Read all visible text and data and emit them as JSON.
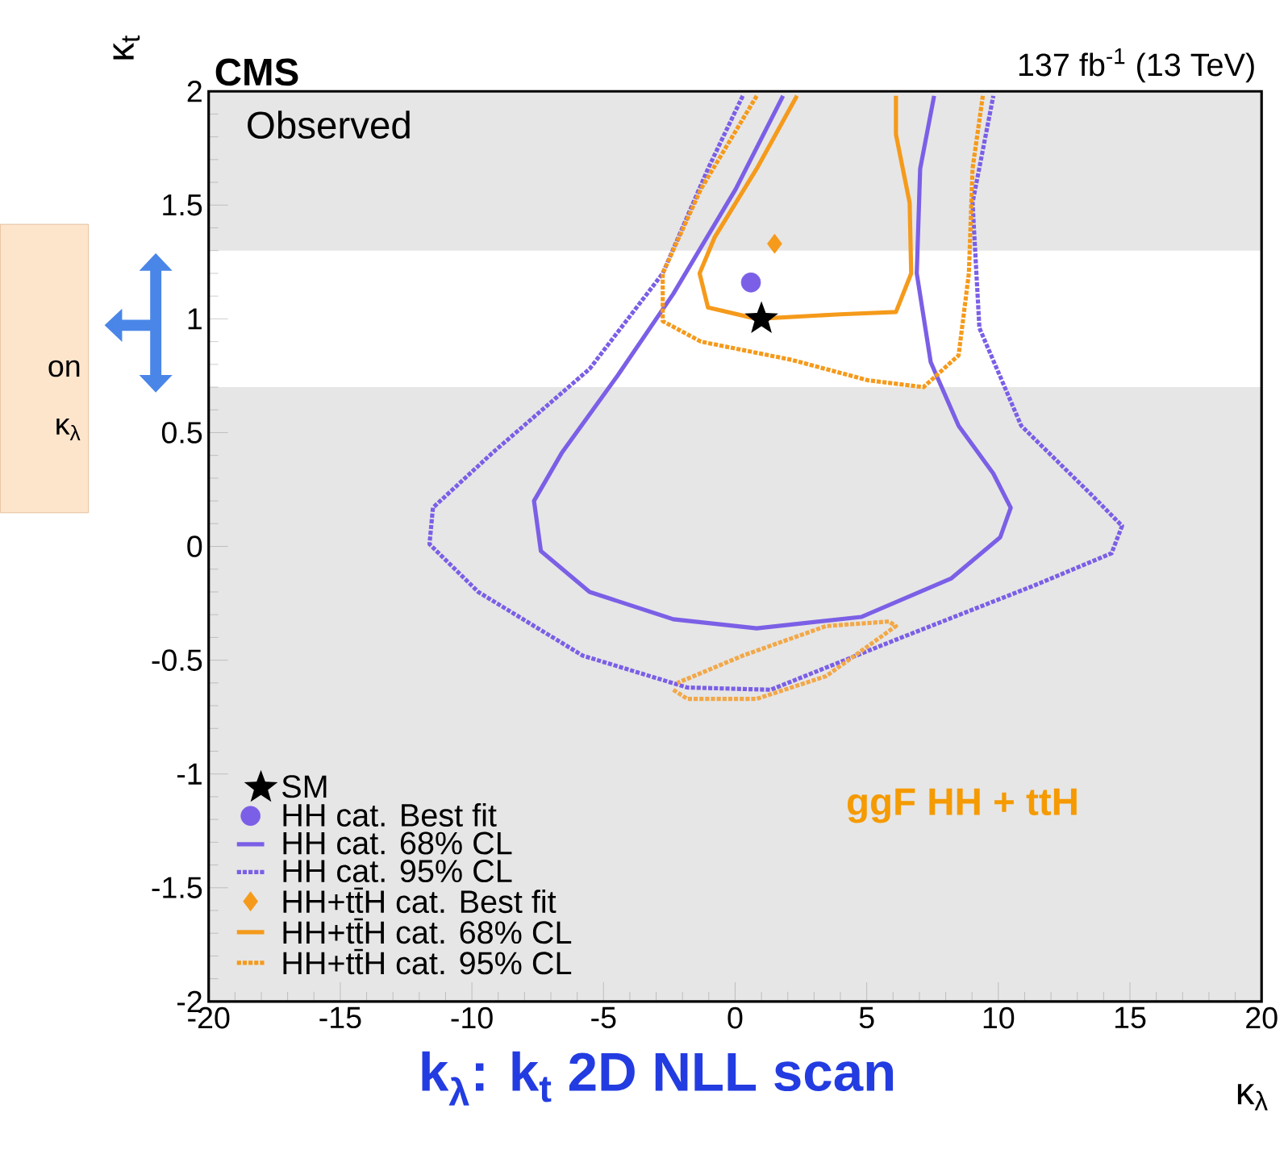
{
  "chart_data": {
    "type": "line",
    "title": "CMS",
    "subtitle": "137 fb$^{-1}$ (13 TeV)",
    "xlabel": "κ$_{λ}$",
    "ylabel": "κ$_{t}$",
    "xlim": [
      -20,
      20
    ],
    "ylim": [
      -2,
      2
    ],
    "xticks": [
      -20,
      -15,
      -10,
      -5,
      0,
      5,
      10,
      15,
      20
    ],
    "yticks": [
      -2,
      -1.5,
      -1,
      -0.5,
      0,
      0.5,
      1,
      1.5,
      2
    ],
    "legend": "bottom left",
    "bands": [
      {
        "axis": "y",
        "from": -2,
        "to": 0.7,
        "color": "#e6e6e6"
      },
      {
        "axis": "y",
        "from": 1.3,
        "to": 2,
        "color": "#e6e6e6"
      }
    ],
    "annotations": [
      "Observed",
      "ggF HH + ttH",
      "k$_{λ}$: k$_{t}$ 2D NLL scan",
      "on",
      "κ$_{λ}$"
    ],
    "series": [
      {
        "line_style": "dotted",
        "color": "#f2a848",
        "x": [
          -2.35,
          -1.82,
          0.82,
          3.46,
          6.11,
          5.84,
          3.46,
          0.29,
          -2.2
        ],
        "values": [
          -0.63,
          -0.67,
          -0.67,
          -0.57,
          -0.35,
          -0.33,
          -0.35,
          -0.48,
          -0.6
        ]
      },
      {
        "name": "SM",
        "type": "scatter",
        "marker": "star",
        "color": "#000000",
        "x": [
          1
        ],
        "values": [
          1
        ]
      },
      {
        "name": "HH cat. Best fit",
        "type": "scatter",
        "marker": "circle",
        "color": "#7b5fe6",
        "x": [
          0.6
        ],
        "values": [
          1.16
        ]
      },
      {
        "name": "HH cat. 68% CL",
        "line_style": "solid",
        "color": "#7b5fe6",
        "x": [
          1.82,
          0.02,
          -2.35,
          -4.47,
          -6.59,
          -7.64,
          -7.38,
          -5.53,
          -2.35,
          0.82,
          4.79,
          8.22,
          10.07,
          10.47,
          9.81,
          8.49,
          7.43,
          6.9,
          7.03,
          7.56
        ],
        "values": [
          1.98,
          1.57,
          1.11,
          0.75,
          0.41,
          0.2,
          -0.02,
          -0.2,
          -0.32,
          -0.36,
          -0.31,
          -0.14,
          0.04,
          0.17,
          0.32,
          0.53,
          0.81,
          1.2,
          1.66,
          1.98
        ]
      },
      {
        "name": "HH cat. 95% CL",
        "line_style": "dotted",
        "color": "#7b5fe6",
        "x": [
          0.29,
          -1.03,
          -2.75,
          -5.53,
          -9.23,
          -11.48,
          -11.61,
          -9.76,
          -5.79,
          -1.82,
          1.35,
          6.11,
          11.4,
          14.3,
          14.7,
          13.51,
          10.87,
          9.28,
          9.02,
          9.81
        ],
        "values": [
          1.98,
          1.66,
          1.2,
          0.78,
          0.41,
          0.17,
          0.01,
          -0.2,
          -0.48,
          -0.62,
          -0.63,
          -0.41,
          -0.17,
          -0.03,
          0.09,
          0.23,
          0.53,
          0.96,
          1.51,
          1.98
        ]
      },
      {
        "name": "HH+tt̄H cat. Best fit",
        "type": "scatter",
        "marker": "diamond",
        "color": "#f59a1b",
        "x": [
          1.5
        ],
        "values": [
          1.33
        ]
      },
      {
        "name": "HH+tt̄H cat. 68% CL",
        "line_style": "solid",
        "color": "#f59a1b",
        "x": [
          2.35,
          0.82,
          -0.77,
          -1.35,
          -1.03,
          0.82,
          3.99,
          6.11,
          6.69,
          6.63,
          6.11,
          6.11
        ],
        "values": [
          1.98,
          1.66,
          1.36,
          1.2,
          1.05,
          1.0,
          1.02,
          1.03,
          1.2,
          1.51,
          1.81,
          1.98
        ]
      },
      {
        "name": "HH+tt̄H cat. 95% CL",
        "line_style": "dotted",
        "color": "#f59a1b",
        "x": [
          0.82,
          -1.3,
          -2.75,
          -2.75,
          -1.3,
          2.14,
          5.05,
          7.16,
          8.49,
          8.88,
          9.02,
          9.41
        ],
        "values": [
          1.98,
          1.57,
          1.2,
          0.99,
          0.9,
          0.82,
          0.73,
          0.7,
          0.84,
          1.2,
          1.66,
          1.98
        ]
      }
    ]
  }
}
